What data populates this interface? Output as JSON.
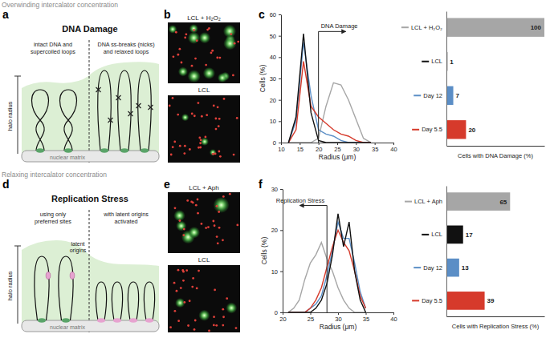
{
  "panels": {
    "top_heading": "Overwinding intercalator concentration",
    "bottom_heading": "Relaxing intercalator concentration",
    "a": {
      "letter": "a",
      "title": "DNA Damage",
      "left_label": [
        "intact DNA and",
        "supercoiled loops"
      ],
      "right_label": [
        "DNA ss-breaks (nicks)",
        "and relaxed loops"
      ],
      "axis_label": "halo radius",
      "matrix_label": "nuclear matrix"
    },
    "b": {
      "letter": "b",
      "images": [
        "LCL + H₂O₂",
        "LCL"
      ]
    },
    "c": {
      "letter": "c"
    },
    "d": {
      "letter": "d",
      "title": "Replication Stress",
      "left_label": [
        "using only",
        "preferred sites"
      ],
      "right_label": [
        "with latent origins",
        "activated"
      ],
      "origin_label": [
        "latent",
        "origins"
      ],
      "axis_label": "halo radius",
      "matrix_label": "nuclear matrix"
    },
    "e": {
      "letter": "e",
      "images": [
        "LCL + Aph",
        "LCL"
      ]
    },
    "f": {
      "letter": "f"
    }
  },
  "chart_data": [
    {
      "type": "line",
      "x": [
        12,
        14,
        16,
        18,
        20,
        22,
        24,
        26,
        28,
        30,
        32,
        34
      ],
      "xlim": [
        10,
        40
      ],
      "xticks": [
        10,
        15,
        20,
        25,
        30,
        35,
        40
      ],
      "ylim": [
        0,
        60
      ],
      "yticks": [
        0,
        10,
        20,
        30,
        40,
        50,
        60
      ],
      "x_label": "Radius (μm)",
      "y_label": "Cells (%)",
      "series": [
        {
          "color": "#a6a6a6",
          "values": [
            0,
            0,
            0,
            0,
            2,
            17,
            28,
            27,
            20,
            11,
            2,
            0
          ]
        },
        {
          "color": "#5b8ec6",
          "values": [
            0,
            10,
            47,
            22,
            6,
            4,
            3,
            1,
            0,
            0,
            0,
            0
          ]
        },
        {
          "color": "#d63a2b",
          "values": [
            0,
            6,
            38,
            17,
            12,
            9,
            6,
            4,
            3,
            1,
            0,
            0
          ]
        },
        {
          "color": "#111111",
          "values": [
            0,
            12,
            51,
            14,
            1,
            0,
            0,
            0,
            0,
            0,
            0,
            0
          ]
        }
      ],
      "annotation": {
        "text": "DNA Damage",
        "x": 20,
        "y": 52
      }
    },
    {
      "type": "bar",
      "orientation": "horizontal",
      "categories": [
        "LCL + H₂O₂",
        "LCL",
        "Day 12",
        "Day 5.5"
      ],
      "values": [
        100,
        1,
        7,
        20
      ],
      "colors": [
        "#a6a6a6",
        "#111111",
        "#5b8ec6",
        "#d63a2b"
      ],
      "xlim": [
        0,
        100
      ],
      "x_label": "Cells with DNA Damage (%)",
      "data_labels": true,
      "tick_labels": "y"
    },
    {
      "type": "line",
      "x": [
        21,
        22,
        23,
        24,
        25,
        26,
        27,
        28,
        29,
        30,
        31,
        32,
        33,
        34,
        35
      ],
      "xlim": [
        20,
        40
      ],
      "xticks": [
        20,
        25,
        30,
        35,
        40
      ],
      "ylim": [
        0,
        30
      ],
      "yticks": [
        0,
        10,
        20,
        30
      ],
      "x_label": "Radius (μm)",
      "y_label": "Cells (%)",
      "series": [
        {
          "color": "#a6a6a6",
          "values": [
            0,
            1,
            3,
            8,
            12,
            14,
            17,
            13,
            10,
            6,
            3,
            1,
            0,
            0,
            0
          ]
        },
        {
          "color": "#5b8ec6",
          "values": [
            0,
            0,
            0,
            0,
            1,
            2,
            4,
            9,
            15,
            22,
            18,
            18,
            12,
            5,
            1
          ]
        },
        {
          "color": "#d63a2b",
          "values": [
            0,
            0,
            0,
            0,
            1,
            3,
            6,
            11,
            16,
            20,
            17,
            15,
            10,
            4,
            1
          ]
        },
        {
          "color": "#111111",
          "values": [
            0,
            0,
            0,
            0,
            0,
            1,
            3,
            7,
            14,
            24,
            16,
            22,
            10,
            3,
            0
          ]
        }
      ],
      "annotation": {
        "text": "Replication Stress",
        "x": 28,
        "y": 26
      }
    },
    {
      "type": "bar",
      "orientation": "horizontal",
      "categories": [
        "LCL + Aph",
        "LCL",
        "Day 12",
        "Day 5.5"
      ],
      "values": [
        65,
        17,
        13,
        39
      ],
      "colors": [
        "#a6a6a6",
        "#111111",
        "#5b8ec6",
        "#d63a2b"
      ],
      "xlim": [
        0,
        100
      ],
      "x_label": "Cells with Replication Stress (%)",
      "data_labels": true,
      "tick_labels": "y"
    }
  ]
}
